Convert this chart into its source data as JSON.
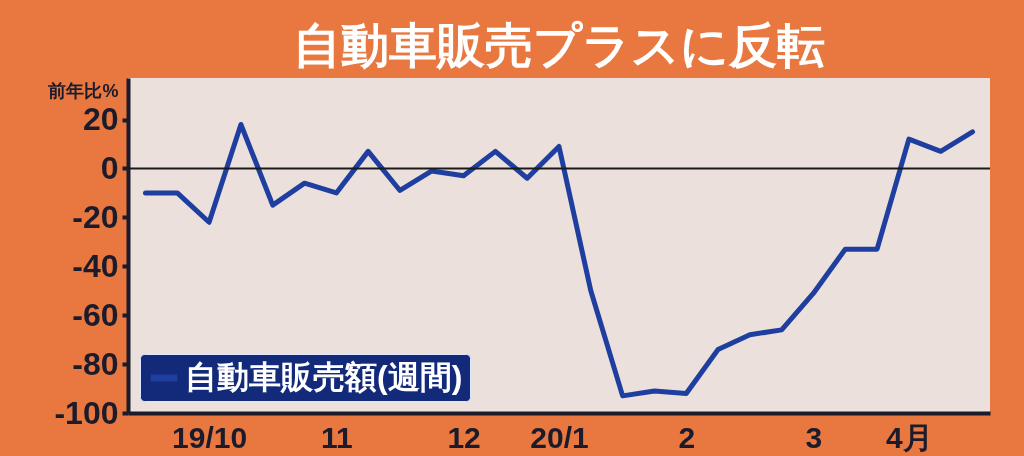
{
  "chart_data": {
    "type": "line",
    "title": "自動車販売プラスに反転",
    "ylabel": "前年比%",
    "categories": [
      null,
      null,
      "19/10",
      null,
      null,
      null,
      "11",
      null,
      null,
      null,
      "12",
      null,
      null,
      "20/1",
      null,
      null,
      null,
      "2",
      null,
      null,
      null,
      "3",
      null,
      null,
      "4月",
      null,
      null
    ],
    "series": [
      {
        "name": "自動車販売額(週間)",
        "color": "#1f3fa0",
        "values": [
          -10,
          -10,
          -22,
          18,
          -15,
          -6,
          -10,
          7,
          -9,
          -1,
          -3,
          7,
          -4,
          9,
          -50,
          -93,
          -91,
          -92,
          -74,
          -68,
          -66,
          -51,
          -33,
          -33,
          12,
          7,
          15
        ]
      }
    ],
    "ylim": [
      -100,
      37
    ],
    "yticks": [
      -100,
      -80,
      -60,
      -40,
      -20,
      0,
      20
    ],
    "ref_lines": [
      {
        "axis": "y",
        "value": 0,
        "color": "#1a1a1a"
      }
    ],
    "legend": "bottom left",
    "marker": "none",
    "line_style": "solid"
  }
}
